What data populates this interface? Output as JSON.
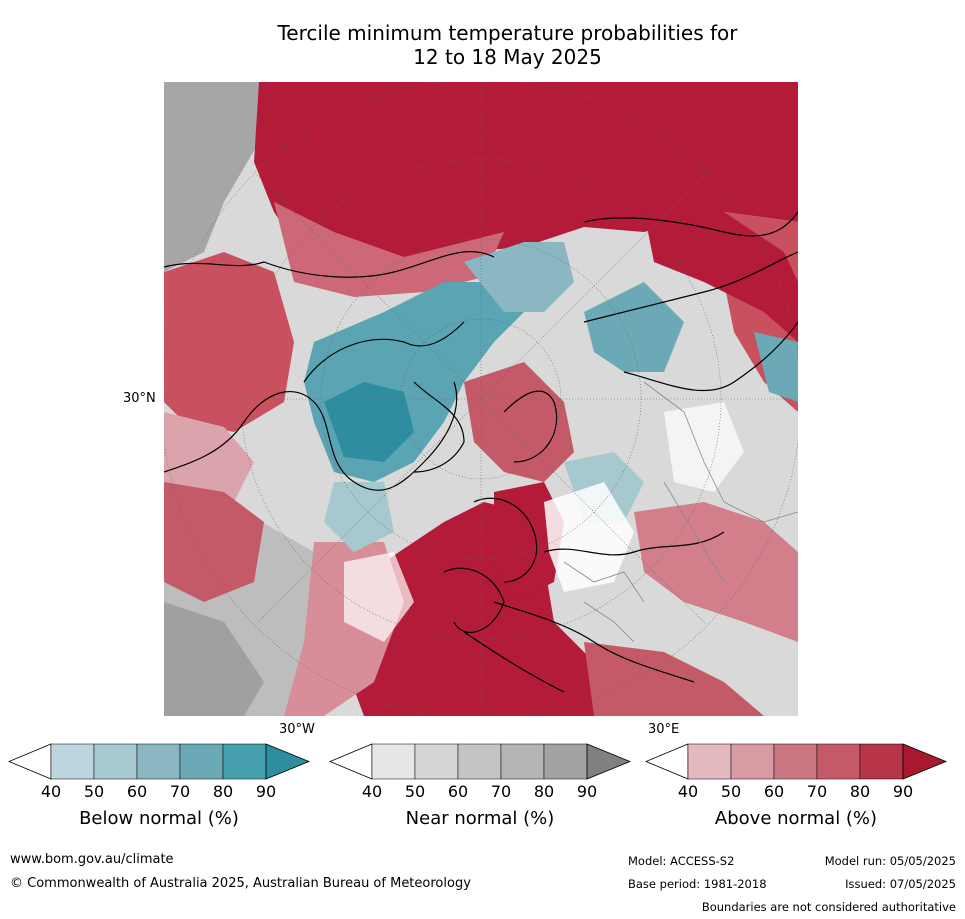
{
  "title_line1": "Tercile minimum temperature probabilities for",
  "title_line2": "12 to 18 May 2025",
  "map": {
    "projection": "north-polar-stereographic",
    "lat_label": "30°N",
    "lon_labels": [
      "30°W",
      "30°E"
    ],
    "colors": {
      "above_normal": "#b31b38",
      "near_normal": "#a6a6a6",
      "below_normal": "#3890a4",
      "coastline": "#000000",
      "borders": "#888888"
    }
  },
  "colorbars": [
    {
      "label": "Below normal (%)",
      "ticks": [
        "40",
        "50",
        "60",
        "70",
        "80",
        "90"
      ],
      "colors": [
        "#ffffff",
        "#bdd6dd",
        "#a6c9d0",
        "#8bb7c2",
        "#6aa9b5",
        "#47a0ae",
        "#2e8d9e"
      ]
    },
    {
      "label": "Near normal (%)",
      "ticks": [
        "40",
        "50",
        "60",
        "70",
        "80",
        "90"
      ],
      "colors": [
        "#ffffff",
        "#e6e6e6",
        "#d6d6d6",
        "#c4c4c4",
        "#b5b5b5",
        "#a3a3a3",
        "#808080"
      ]
    },
    {
      "label": "Above normal (%)",
      "ticks": [
        "40",
        "50",
        "60",
        "70",
        "80",
        "90"
      ],
      "colors": [
        "#ffffff",
        "#e4b9bf",
        "#d89aa3",
        "#cc7883",
        "#c45a68",
        "#b83548",
        "#a8182e"
      ]
    }
  ],
  "footer": {
    "website": "www.bom.gov.au/climate",
    "copyright": "© Commonwealth of Australia 2025, Australian Bureau of Meteorology",
    "model": "Model: ACCESS-S2",
    "base_period": "Base period: 1981-2018",
    "model_run": "Model run: 05/05/2025",
    "issued": "Issued: 07/05/2025",
    "disclaimer": "Boundaries are not considered authoritative"
  }
}
